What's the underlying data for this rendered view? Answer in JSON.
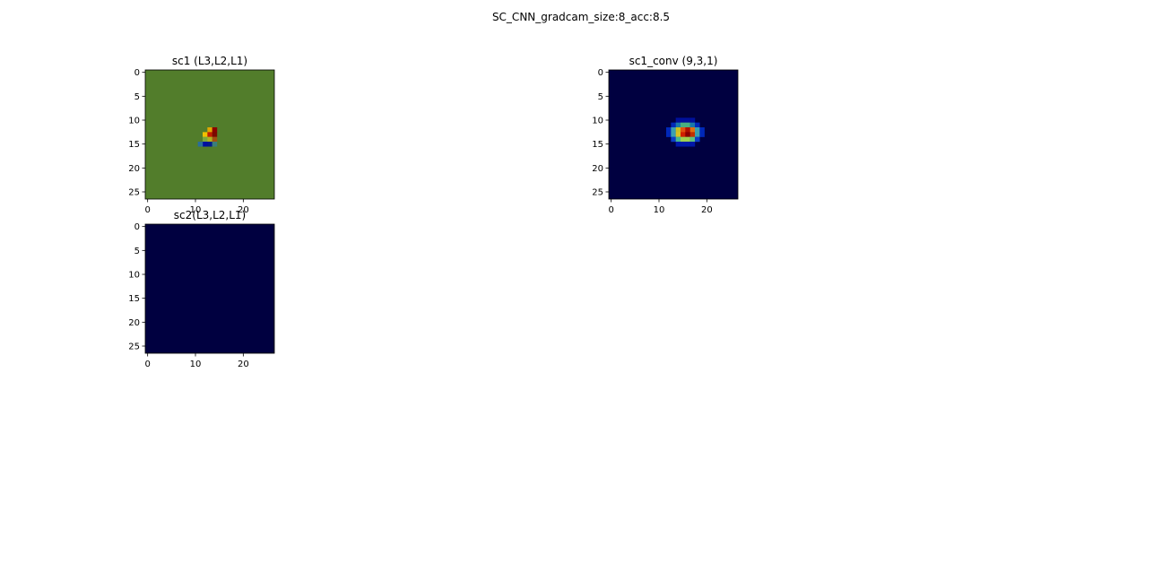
{
  "figure": {
    "title": "SC_CNN_gradcam_size:8_acc:8.5"
  },
  "chart_data": [
    {
      "type": "heatmap",
      "title": "sc1 (L3,L2,L1)",
      "grid_size": 27,
      "x_ticks": [
        "0",
        "10",
        "20"
      ],
      "y_ticks": [
        "0",
        "5",
        "10",
        "15",
        "20",
        "25"
      ],
      "background_color": "#527d2b",
      "cells": [
        {
          "row": 12,
          "col": 13,
          "color": "#e0a800"
        },
        {
          "row": 12,
          "col": 14,
          "color": "#8b0000"
        },
        {
          "row": 13,
          "col": 12,
          "color": "#f0c000"
        },
        {
          "row": 13,
          "col": 13,
          "color": "#c02000"
        },
        {
          "row": 13,
          "col": 14,
          "color": "#7a0a00"
        },
        {
          "row": 14,
          "col": 12,
          "color": "#7ba83c"
        },
        {
          "row": 14,
          "col": 13,
          "color": "#b0b020"
        },
        {
          "row": 14,
          "col": 14,
          "color": "#a05010"
        },
        {
          "row": 15,
          "col": 12,
          "color": "#0010a0"
        },
        {
          "row": 15,
          "col": 13,
          "color": "#001a8c"
        },
        {
          "row": 15,
          "col": 11,
          "color": "#2a6e9a"
        },
        {
          "row": 15,
          "col": 14,
          "color": "#3a7e7a"
        }
      ]
    },
    {
      "type": "heatmap",
      "title": "sc1_conv (9,3,1)",
      "grid_size": 27,
      "x_ticks": [
        "0",
        "10",
        "20"
      ],
      "y_ticks": [
        "0",
        "5",
        "10",
        "15",
        "20",
        "25"
      ],
      "background_color": "#000040",
      "cells": [
        {
          "row": 10,
          "col": 14,
          "color": "#00109a"
        },
        {
          "row": 10,
          "col": 15,
          "color": "#00109a"
        },
        {
          "row": 10,
          "col": 16,
          "color": "#00109a"
        },
        {
          "row": 10,
          "col": 17,
          "color": "#00109a"
        },
        {
          "row": 11,
          "col": 13,
          "color": "#0028b8"
        },
        {
          "row": 11,
          "col": 14,
          "color": "#1a78a8"
        },
        {
          "row": 11,
          "col": 15,
          "color": "#48b080"
        },
        {
          "row": 11,
          "col": 16,
          "color": "#48b080"
        },
        {
          "row": 11,
          "col": 17,
          "color": "#1a78a8"
        },
        {
          "row": 11,
          "col": 18,
          "color": "#0028b8"
        },
        {
          "row": 12,
          "col": 12,
          "color": "#0028b8"
        },
        {
          "row": 12,
          "col": 13,
          "color": "#3aa0b0"
        },
        {
          "row": 12,
          "col": 14,
          "color": "#c8c020"
        },
        {
          "row": 12,
          "col": 15,
          "color": "#e05010"
        },
        {
          "row": 12,
          "col": 16,
          "color": "#b01000"
        },
        {
          "row": 12,
          "col": 17,
          "color": "#e07010"
        },
        {
          "row": 12,
          "col": 18,
          "color": "#3aa0b0"
        },
        {
          "row": 12,
          "col": 19,
          "color": "#0028b8"
        },
        {
          "row": 13,
          "col": 12,
          "color": "#0028b8"
        },
        {
          "row": 13,
          "col": 13,
          "color": "#3aa0b0"
        },
        {
          "row": 13,
          "col": 14,
          "color": "#d8c020"
        },
        {
          "row": 13,
          "col": 15,
          "color": "#d02000"
        },
        {
          "row": 13,
          "col": 16,
          "color": "#8b0000"
        },
        {
          "row": 13,
          "col": 17,
          "color": "#c03000"
        },
        {
          "row": 13,
          "col": 18,
          "color": "#3aa0b0"
        },
        {
          "row": 13,
          "col": 19,
          "color": "#0028b8"
        },
        {
          "row": 14,
          "col": 13,
          "color": "#0a3cc8"
        },
        {
          "row": 14,
          "col": 14,
          "color": "#48b890"
        },
        {
          "row": 14,
          "col": 15,
          "color": "#a0d050"
        },
        {
          "row": 14,
          "col": 16,
          "color": "#a0d050"
        },
        {
          "row": 14,
          "col": 17,
          "color": "#60c080"
        },
        {
          "row": 14,
          "col": 18,
          "color": "#0a3cc8"
        },
        {
          "row": 15,
          "col": 14,
          "color": "#0018a8"
        },
        {
          "row": 15,
          "col": 15,
          "color": "#0018a8"
        },
        {
          "row": 15,
          "col": 16,
          "color": "#0018a8"
        },
        {
          "row": 15,
          "col": 17,
          "color": "#0018a8"
        }
      ]
    },
    {
      "type": "heatmap",
      "title": "sc2(L3,L2,L1)",
      "grid_size": 27,
      "x_ticks": [
        "0",
        "10",
        "20"
      ],
      "y_ticks": [
        "0",
        "5",
        "10",
        "15",
        "20",
        "25"
      ],
      "background_color": "#000040",
      "cells": []
    }
  ]
}
